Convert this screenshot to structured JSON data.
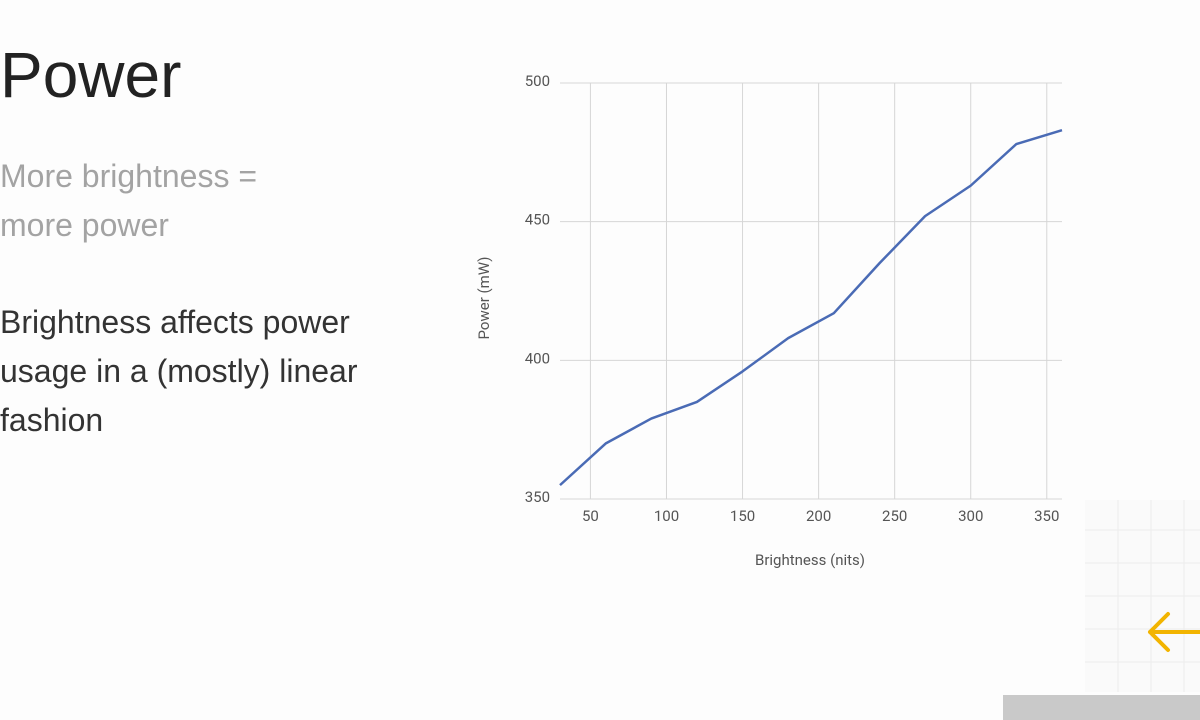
{
  "slide": {
    "title": "Power",
    "subtitle_lines": [
      "More brightness =",
      "more power"
    ],
    "body_lines": [
      "Brightness affects power",
      "usage in a (mostly) linear",
      "fashion"
    ]
  },
  "chart_data": {
    "type": "line",
    "x_label": "Brightness (nits)",
    "y_label": "Power (mW)",
    "x": [
      30,
      60,
      90,
      120,
      150,
      180,
      210,
      240,
      270,
      300,
      330,
      360
    ],
    "values": [
      355,
      370,
      379,
      385,
      396,
      408,
      417,
      435,
      452,
      463,
      478,
      483
    ],
    "color": "#4a6bb5",
    "xlim": [
      30,
      360
    ],
    "xticks": [
      50,
      100,
      150,
      200,
      250,
      300,
      350
    ],
    "ylim": [
      350,
      500
    ],
    "yticks": [
      350,
      400,
      450,
      500
    ],
    "grid": true
  }
}
